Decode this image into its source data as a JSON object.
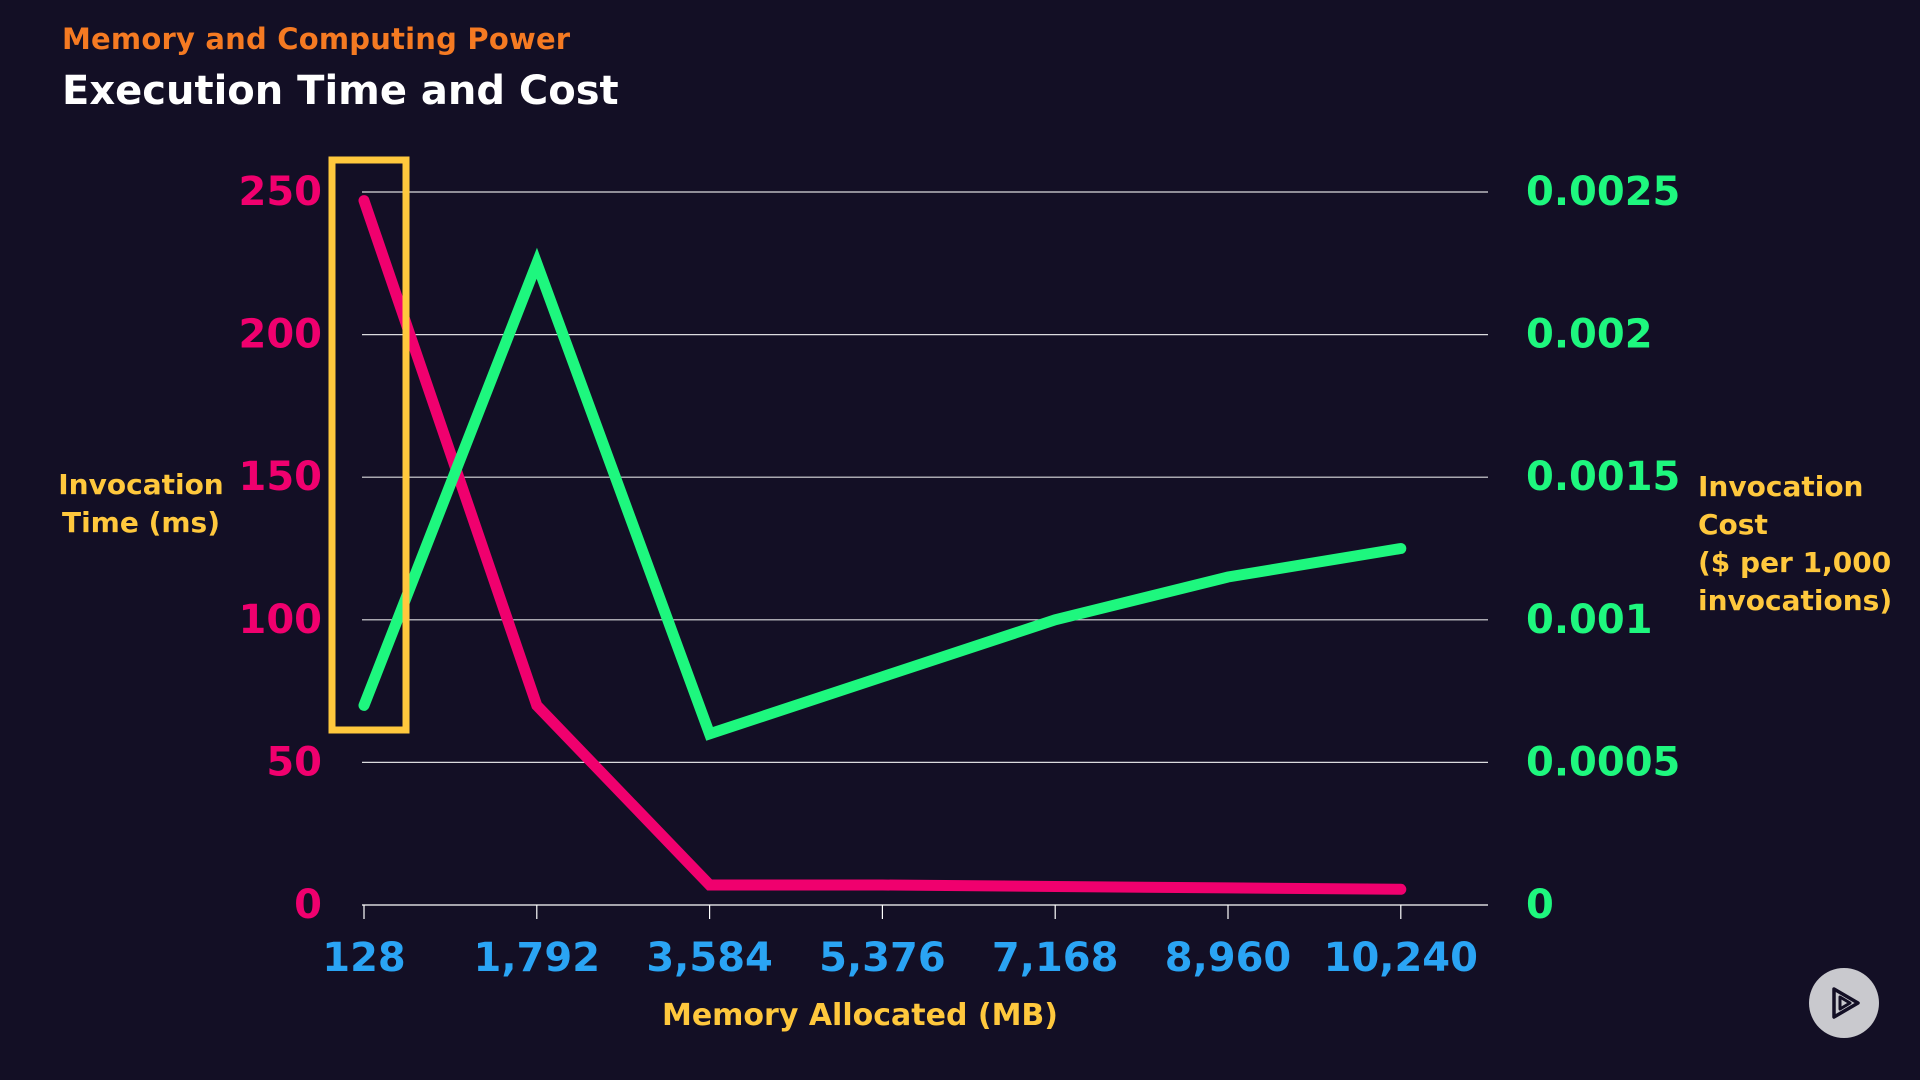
{
  "header": {
    "eyebrow": "Memory and Computing Power",
    "title": "Execution Time and Cost"
  },
  "colors": {
    "background": "#130f25",
    "time_series": "#f0006e",
    "cost_series": "#1ef77e",
    "x_ticks": "#2aa4f4",
    "axis_titles": "#ffc83d",
    "eyebrow": "#f57a22",
    "highlight_box": "#ffc83d"
  },
  "chart_data": {
    "type": "line",
    "x": [
      128,
      1792,
      3584,
      5376,
      7168,
      8960,
      10240
    ],
    "x_tick_labels": [
      "128",
      "1,792",
      "3,584",
      "5,376",
      "7,168",
      "8,960",
      "10,240"
    ],
    "xlabel": "Memory Allocated (MB)",
    "y_left": {
      "label_lines": [
        "Invocation",
        "Time (ms)"
      ],
      "ylim": [
        0,
        250
      ],
      "ticks": [
        0,
        50,
        100,
        150,
        200,
        250
      ],
      "tick_labels": [
        "0",
        "50",
        "100",
        "150",
        "200",
        "250"
      ]
    },
    "y_right": {
      "label_lines": [
        "Invocation",
        "Cost",
        "($ per 1,000",
        "invocations)"
      ],
      "ylim": [
        0,
        0.0025
      ],
      "ticks": [
        0,
        0.0005,
        0.001,
        0.0015,
        0.002,
        0.0025
      ],
      "tick_labels": [
        "0",
        "0.0005",
        "0.001",
        "0.0015",
        "0.002",
        "0.0025"
      ]
    },
    "series": [
      {
        "axis": "left",
        "color": "#f0006e",
        "values": [
          247,
          70,
          7,
          7,
          6.5,
          6,
          5.5
        ]
      },
      {
        "axis": "right",
        "color": "#1ef77e",
        "values": [
          0.0007,
          0.00225,
          0.0006,
          0.0008,
          0.001,
          0.00115,
          0.00125
        ]
      }
    ],
    "grid": true,
    "highlight": {
      "x": 128,
      "shape": "rectangle",
      "color": "#ffc83d"
    }
  }
}
